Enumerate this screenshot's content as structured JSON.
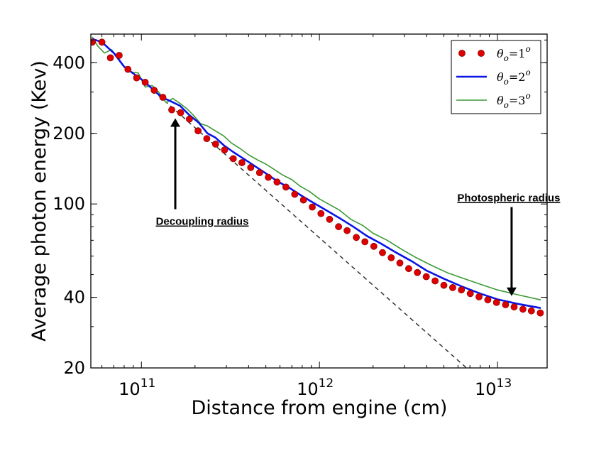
{
  "chart_data": {
    "type": "line",
    "title": "",
    "xlabel": "Distance from engine (cm)",
    "ylabel": "Average photon energy (Kev)",
    "xscale": "log",
    "yscale": "log",
    "xlim": [
      52000000000.0,
      19000000000000.0
    ],
    "ylim": [
      20,
      530
    ],
    "x_ticks": [
      {
        "value": 100000000000.0,
        "base": "10",
        "exp": "11"
      },
      {
        "value": 1000000000000.0,
        "base": "10",
        "exp": "12"
      },
      {
        "value": 10000000000000.0,
        "base": "10",
        "exp": "13"
      }
    ],
    "y_ticks": [
      {
        "value": 20,
        "label": "20"
      },
      {
        "value": 40,
        "label": "40"
      },
      {
        "value": 100,
        "label": "100"
      },
      {
        "value": 200,
        "label": "200"
      },
      {
        "value": 400,
        "label": "400"
      }
    ],
    "legend": {
      "position": "top-right",
      "entries": [
        {
          "prefix": "θ",
          "sub": "o",
          "eq": "=1",
          "sup": "o"
        },
        {
          "prefix": "θ",
          "sub": "o",
          "eq": "=2",
          "sup": "o"
        },
        {
          "prefix": "θ",
          "sub": "o",
          "eq": "=3",
          "sup": "o"
        }
      ]
    },
    "series": [
      {
        "name": "θo=1o",
        "style": "markers",
        "color": "#dd0000",
        "x": [
          53000000000.0,
          60000000000.0,
          67000000000.0,
          75000000000.0,
          84000000000.0,
          94000000000.0,
          105000000000.0,
          118000000000.0,
          132000000000.0,
          148000000000.0,
          166000000000.0,
          186000000000.0,
          208000000000.0,
          233000000000.0,
          261000000000.0,
          293000000000.0,
          328000000000.0,
          367000000000.0,
          411000000000.0,
          461000000000.0,
          516000000000.0,
          578000000000.0,
          648000000000.0,
          726000000000.0,
          813000000000.0,
          911000000000.0,
          1020000000000.0,
          1140000000000.0,
          1280000000000.0,
          1430000000000.0,
          1610000000000.0,
          1800000000000.0,
          2020000000000.0,
          2260000000000.0,
          2530000000000.0,
          2830000000000.0,
          3170000000000.0,
          3550000000000.0,
          3980000000000.0,
          4460000000000.0,
          5000000000000.0,
          5600000000000.0,
          6270000000000.0,
          7030000000000.0,
          7870000000000.0,
          8820000000000.0,
          9880000000000.0,
          11100000000000.0,
          12400000000000.0,
          13900000000000.0,
          15500000000000.0,
          17400000000000.0
        ],
        "y": [
          490,
          490,
          420,
          430,
          375,
          345,
          330,
          305,
          285,
          252,
          245,
          230,
          205,
          190,
          180,
          170,
          156,
          150,
          143,
          136,
          130,
          124,
          118,
          110,
          104,
          97,
          91,
          86,
          80,
          77,
          72,
          69,
          66,
          62,
          59,
          56,
          53,
          51,
          49,
          47,
          45,
          44,
          43,
          41.5,
          40.2,
          39,
          38,
          37.2,
          36.4,
          35.6,
          35,
          34.3
        ]
      },
      {
        "name": "θo=2o",
        "style": "line",
        "color": "#0a14e6",
        "x": [
          53000000000.0,
          60000000000.0,
          70000000000.0,
          80000000000.0,
          90000000000.0,
          100000000000.0,
          115000000000.0,
          130000000000.0,
          145000000000.0,
          165000000000.0,
          185000000000.0,
          210000000000.0,
          235000000000.0,
          260000000000.0,
          290000000000.0,
          330000000000.0,
          380000000000.0,
          440000000000.0,
          500000000000.0,
          580000000000.0,
          680000000000.0,
          800000000000.0,
          950000000000.0,
          1120000000000.0,
          1300000000000.0,
          1550000000000.0,
          1850000000000.0,
          2200000000000.0,
          2700000000000.0,
          3300000000000.0,
          4000000000000.0,
          5000000000000.0,
          6300000000000.0,
          8000000000000.0,
          10000000000000.0,
          13000000000000.0,
          17500000000000.0
        ],
        "y": [
          505,
          490,
          440,
          385,
          360,
          340,
          310,
          285,
          275,
          262,
          240,
          222,
          200,
          192,
          178,
          166,
          155,
          144,
          135,
          125,
          117,
          108,
          100,
          93,
          87,
          80,
          73,
          68,
          62,
          57,
          52,
          48,
          44.5,
          41.5,
          39.2,
          37.5,
          36
        ]
      },
      {
        "name": "θo=3o",
        "style": "line",
        "color": "#3b9a35",
        "x": [
          53000000000.0,
          57000000000.0,
          62000000000.0,
          68000000000.0,
          74000000000.0,
          80000000000.0,
          88000000000.0,
          96000000000.0,
          105000000000.0,
          115000000000.0,
          125000000000.0,
          138000000000.0,
          150000000000.0,
          165000000000.0,
          180000000000.0,
          197000000000.0,
          215000000000.0,
          235000000000.0,
          260000000000.0,
          290000000000.0,
          320000000000.0,
          360000000000.0,
          400000000000.0,
          450000000000.0,
          500000000000.0,
          560000000000.0,
          620000000000.0,
          700000000000.0,
          780000000000.0,
          880000000000.0,
          1000000000000.0,
          1150000000000.0,
          1300000000000.0,
          1500000000000.0,
          1750000000000.0,
          2000000000000.0,
          2400000000000.0,
          2900000000000.0,
          3500000000000.0,
          4200000000000.0,
          5200000000000.0,
          6500000000000.0,
          8000000000000.0,
          10000000000000.0,
          13000000000000.0,
          17500000000000.0
        ],
        "y": [
          515,
          470,
          440,
          455,
          420,
          385,
          365,
          362,
          315,
          320,
          300,
          270,
          282,
          268,
          255,
          238,
          220,
          215,
          205,
          195,
          182,
          172,
          162,
          154,
          148,
          140,
          133,
          127,
          119,
          113,
          105,
          99,
          94,
          86,
          81,
          75,
          70,
          64,
          59,
          55,
          51,
          48,
          45.5,
          43,
          41,
          39
        ]
      }
    ],
    "reference_line": {
      "style": "dashed",
      "color": "#333333",
      "x": [
        125000000000.0,
        6700000000000.0
      ],
      "y": [
        290,
        20
      ]
    },
    "annotations": [
      {
        "text": "Decoupling radius",
        "arrow_tail": [
          155000000000.0,
          95
        ],
        "arrow_head": [
          155000000000.0,
          232
        ]
      },
      {
        "text": "Photospheric radius",
        "arrow_tail": [
          12000000000000.0,
          97
        ],
        "arrow_head": [
          12000000000000.0,
          40.5
        ]
      }
    ]
  }
}
